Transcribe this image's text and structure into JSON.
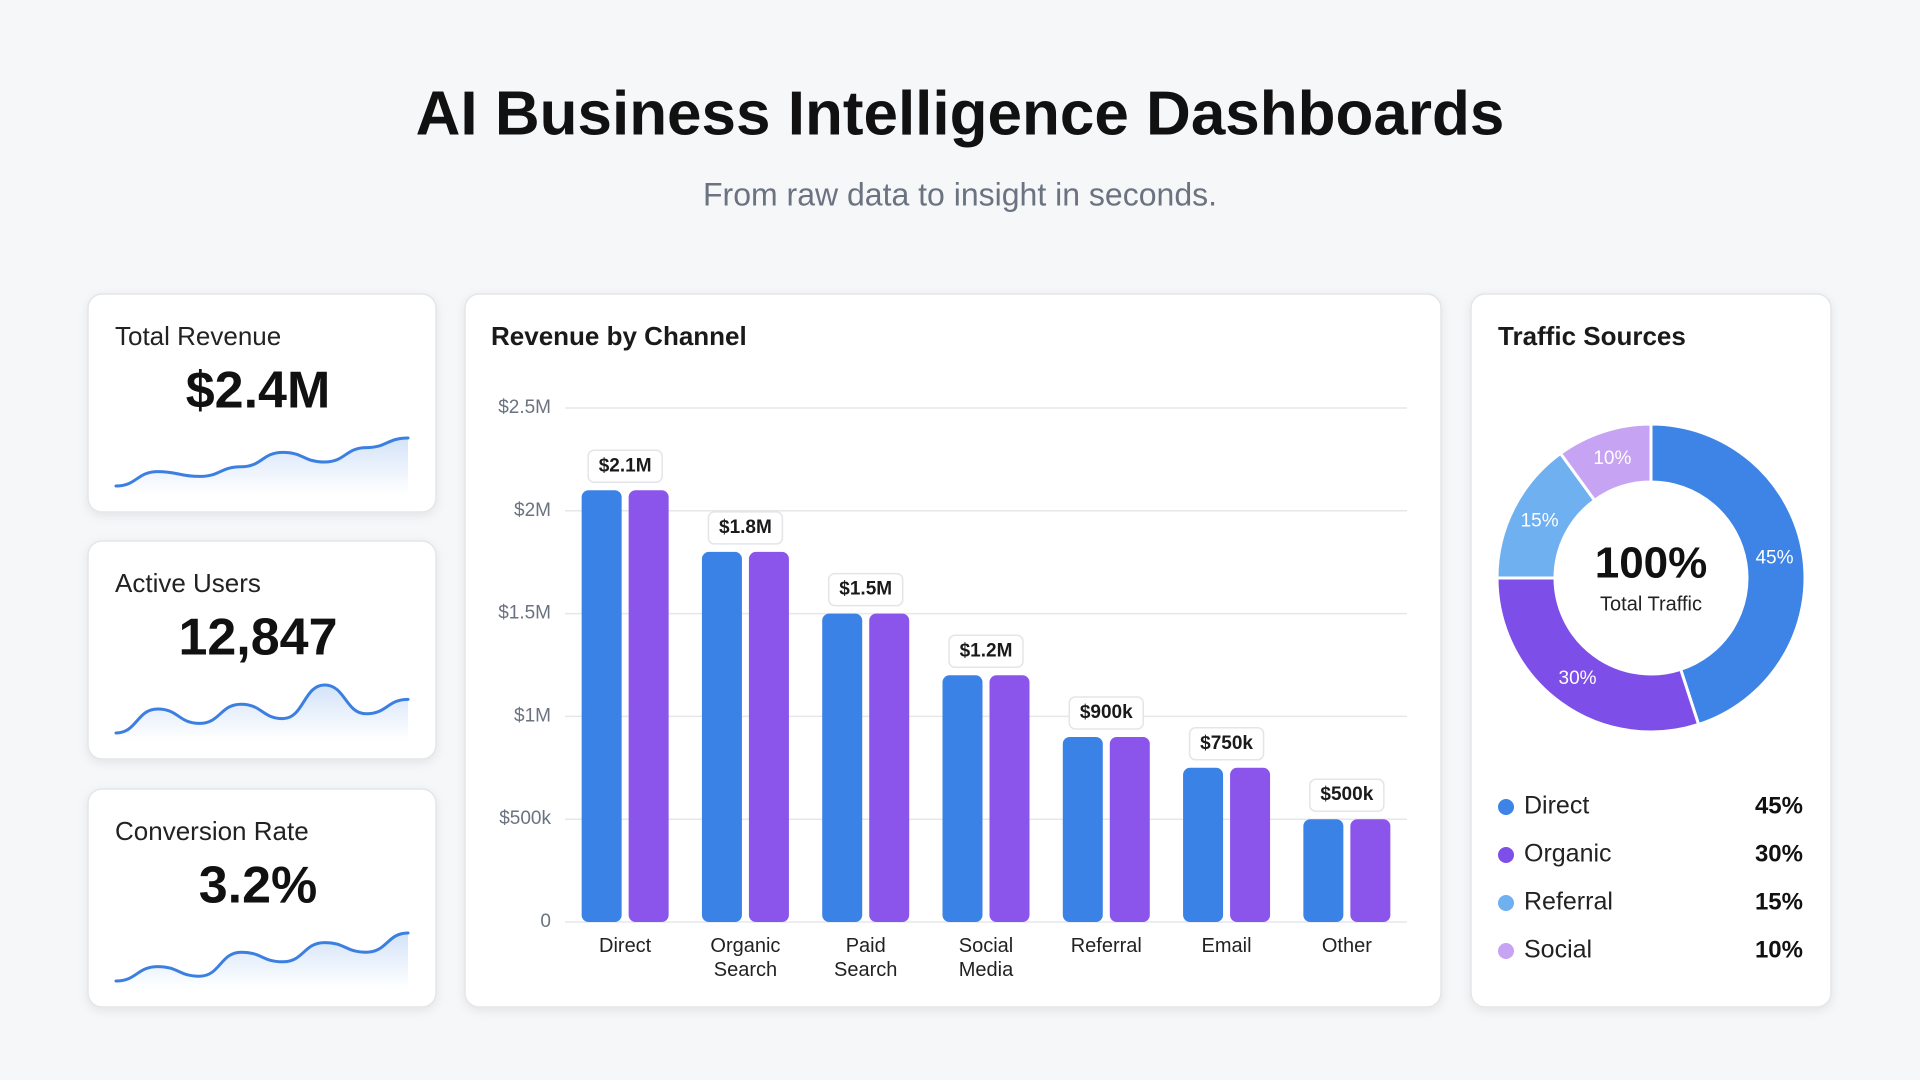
{
  "header": {
    "title": "AI Business Intelligence Dashboards",
    "subtitle": "From raw data to insight in seconds."
  },
  "kpis": [
    {
      "label": "Total Revenue",
      "value": "$2.4M",
      "sparkline": {
        "type": "line",
        "values": [
          0,
          3,
          2,
          4,
          7,
          5,
          8,
          10
        ],
        "ylim": [
          0,
          10
        ],
        "color": "#3b7fe0"
      }
    },
    {
      "label": "Active Users",
      "value": "12,847",
      "sparkline": {
        "type": "line",
        "values": [
          0,
          5,
          2,
          6,
          3,
          10,
          4,
          7
        ],
        "ylim": [
          0,
          10
        ],
        "color": "#3b7fe0"
      }
    },
    {
      "label": "Conversion Rate",
      "value": "3.2%",
      "sparkline": {
        "type": "line",
        "values": [
          0,
          3,
          1,
          6,
          4,
          8,
          6,
          10
        ],
        "ylim": [
          0,
          10
        ],
        "color": "#3b7fe0"
      }
    }
  ],
  "chart_data": [
    {
      "type": "bar",
      "title": "Revenue by Channel",
      "categories": [
        "Direct",
        "Organic Search",
        "Paid Search",
        "Social Media",
        "Referral",
        "Email",
        "Other"
      ],
      "series": [
        {
          "color": "#3b82e6",
          "values": [
            2100000,
            1800000,
            1500000,
            1200000,
            900000,
            750000,
            500000
          ],
          "value_labels": [
            "$2.1M",
            "$1.8M",
            "$1.5M",
            "$1.2M",
            "$900k",
            "$750k",
            "$500k"
          ]
        },
        {
          "color": "#8b55ec",
          "values": [
            2100000,
            1800000,
            1500000,
            1200000,
            900000,
            750000,
            500000
          ]
        }
      ],
      "ylim": [
        0,
        2500000
      ],
      "yticks": [
        0,
        {
          "value": 500000,
          "label": "$500k"
        },
        {
          "value": 1000000,
          "label": "$1M"
        },
        {
          "value": 1500000,
          "label": "$1.5M"
        },
        {
          "value": 2000000,
          "label": "$2M"
        },
        {
          "value": 2500000,
          "label": "$2.5M"
        }
      ],
      "grid": true
    },
    {
      "type": "pie",
      "title": "Traffic Sources",
      "categories": [
        "Direct",
        "Organic",
        "Referral",
        "Social"
      ],
      "values": [
        45,
        30,
        15,
        10
      ],
      "value_labels": [
        "45%",
        "30%",
        "15%",
        "10%"
      ],
      "colors": [
        "#3d84e6",
        "#7d4fe8",
        "#6fb0f0",
        "#c6a3f3"
      ],
      "center_label": "100%",
      "center_caption": "Total Traffic"
    }
  ]
}
